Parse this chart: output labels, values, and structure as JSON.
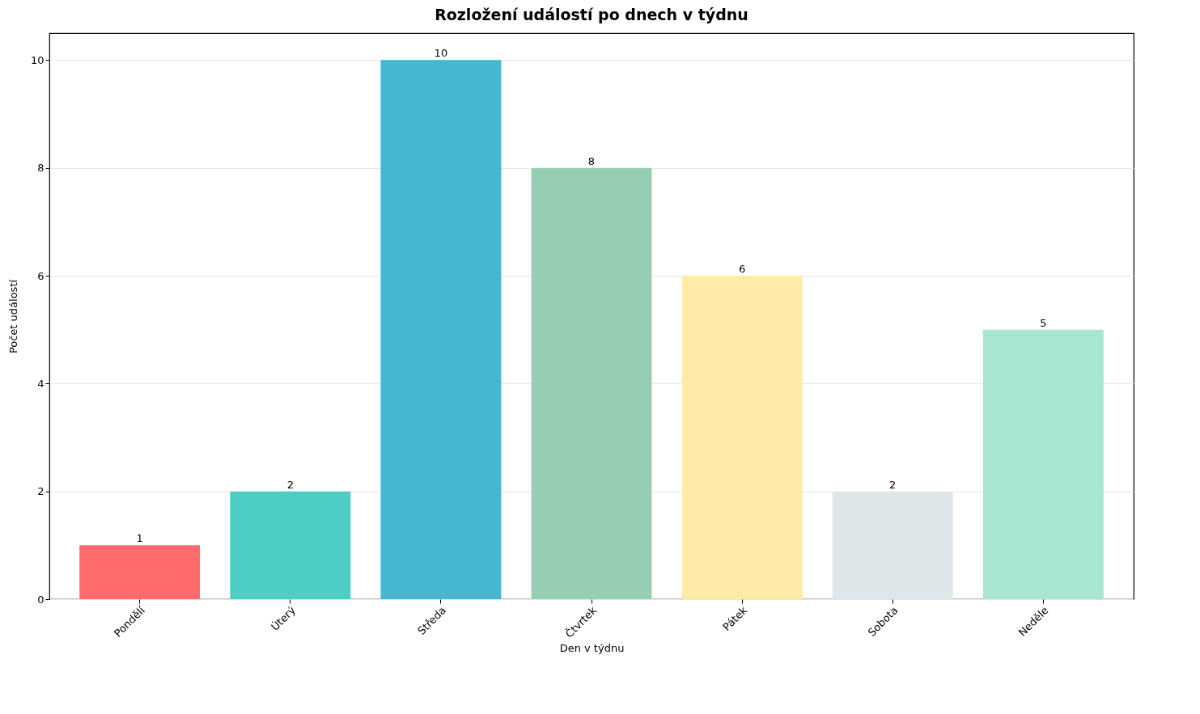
{
  "chart_data": {
    "type": "bar",
    "title": "Rozložení událostí po dnech v týdnu",
    "xlabel": "Den v týdnu",
    "ylabel": "Počet událostí",
    "categories": [
      "Pondělí",
      "Úterý",
      "Středa",
      "Čtvrtek",
      "Pátek",
      "Sobota",
      "Neděle"
    ],
    "values": [
      1,
      2,
      10,
      8,
      6,
      2,
      5
    ],
    "colors": [
      "#ff6b6b",
      "#4ecdc4",
      "#45b7d1",
      "#96ceb4",
      "#ffeaa7",
      "#dfe6e9",
      "#a8e6cf"
    ],
    "ylim": [
      0,
      10.5
    ],
    "yticks": [
      0,
      2,
      4,
      6,
      8,
      10
    ],
    "grid": "y",
    "data_labels": true
  }
}
